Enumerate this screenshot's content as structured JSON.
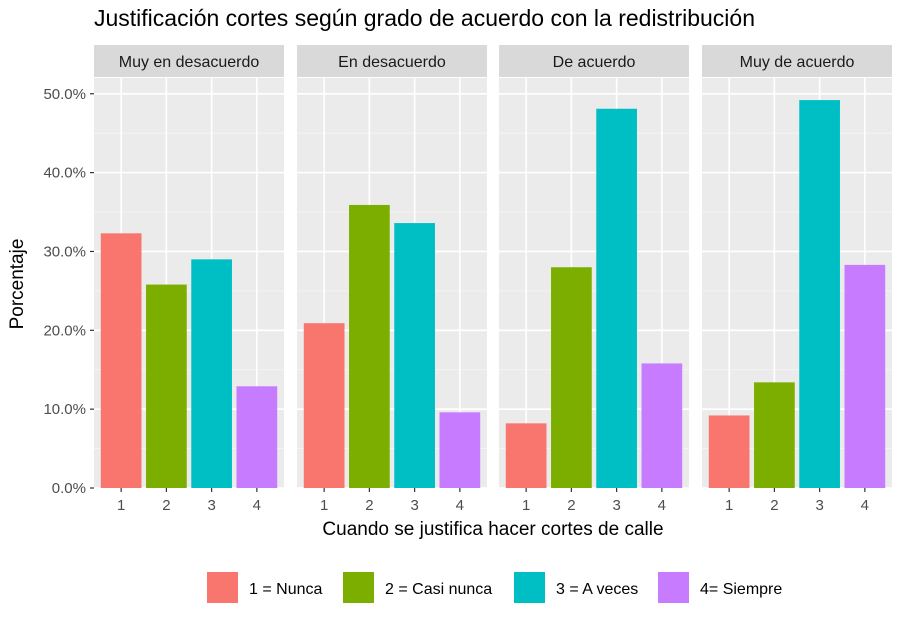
{
  "chart_data": {
    "type": "bar",
    "title": "Justificación cortes según grado de acuerdo con la redistribución",
    "xlabel": "Cuando se justifica hacer cortes de calle",
    "ylabel": "Porcentaje",
    "ylim": [
      0,
      52
    ],
    "y_ticks": [
      0,
      10,
      20,
      30,
      40,
      50
    ],
    "y_tick_labels": [
      "0.0%",
      "10.0%",
      "20.0%",
      "30.0%",
      "40.0%",
      "50.0%"
    ],
    "categories": [
      "1",
      "2",
      "3",
      "4"
    ],
    "category_colors": [
      "#F8766D",
      "#7CAE00",
      "#00BFC4",
      "#C77CFF"
    ],
    "legend": [
      "1 = Nunca",
      "2 = Casi nunca",
      "3 = A veces",
      "4= Siempre"
    ],
    "legend_position": "bottom",
    "panel_bg": "#EBEBEB",
    "strip_bg": "#D9D9D9",
    "grid": true,
    "facets": [
      {
        "label": "Muy en desacuerdo",
        "values": [
          32.3,
          25.8,
          29.0,
          12.9
        ]
      },
      {
        "label": "En desacuerdo",
        "values": [
          20.9,
          35.9,
          33.6,
          9.6
        ]
      },
      {
        "label": "De acuerdo",
        "values": [
          8.2,
          28.0,
          48.1,
          15.8
        ]
      },
      {
        "label": "Muy de acuerdo",
        "values": [
          9.2,
          13.4,
          49.2,
          28.3
        ]
      }
    ]
  }
}
